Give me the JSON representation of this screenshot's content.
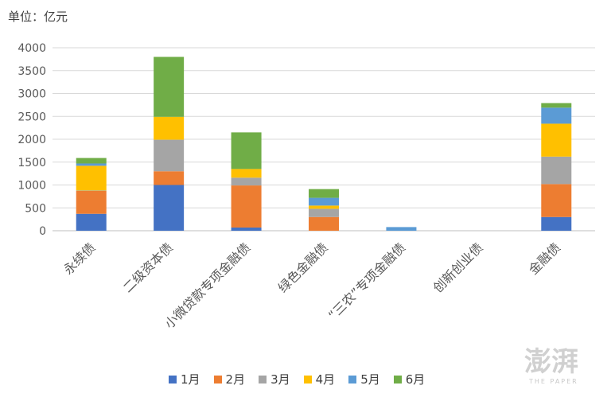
{
  "unit_label": "单位：亿元",
  "chart_data": {
    "type": "bar",
    "stacked": true,
    "title": "",
    "xlabel": "",
    "ylabel": "",
    "ylim": [
      0,
      4000
    ],
    "yticks": [
      0,
      500,
      1000,
      1500,
      2000,
      2500,
      3000,
      3500,
      4000
    ],
    "grid": true,
    "legend_position": "bottom",
    "categories": [
      "永续债",
      "二级资本债",
      "小微贷款专项金融债",
      "绿色金融债",
      "“三农”专项金融债",
      "创新创业债",
      "金融债"
    ],
    "series": [
      {
        "name": "1月",
        "color": "#4472C4",
        "values": [
          370,
          1000,
          70,
          0,
          0,
          0,
          300
        ]
      },
      {
        "name": "2月",
        "color": "#ED7D31",
        "values": [
          500,
          300,
          920,
          300,
          0,
          0,
          720
        ]
      },
      {
        "name": "3月",
        "color": "#A5A5A5",
        "values": [
          10,
          690,
          170,
          180,
          0,
          0,
          600
        ]
      },
      {
        "name": "4月",
        "color": "#FFC000",
        "values": [
          540,
          500,
          190,
          70,
          0,
          0,
          720
        ]
      },
      {
        "name": "5月",
        "color": "#5B9BD5",
        "values": [
          50,
          0,
          0,
          170,
          80,
          0,
          350
        ]
      },
      {
        "name": "6月",
        "color": "#70AD47",
        "values": [
          120,
          1310,
          800,
          190,
          0,
          0,
          100
        ]
      }
    ]
  },
  "watermark": {
    "text": "澎湃",
    "subtext": "THE PAPER"
  }
}
